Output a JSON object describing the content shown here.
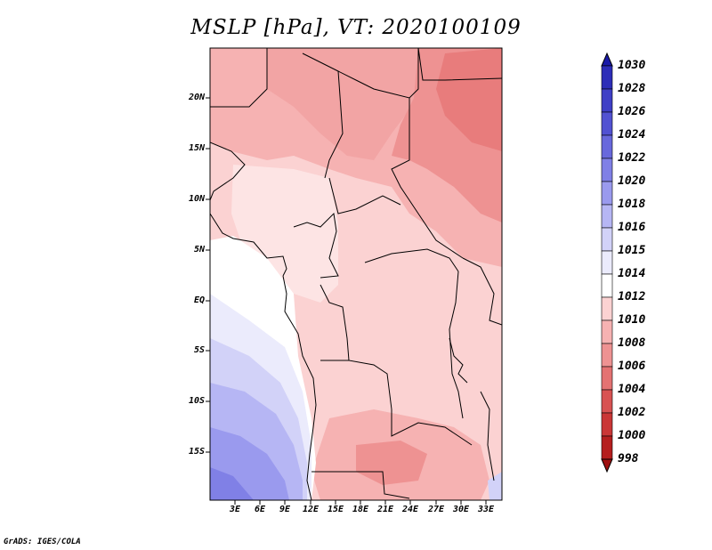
{
  "title": "MSLP [hPa], VT: 2020100109",
  "credit": "GrADS: IGES/COLA",
  "lat_labels": [
    "20N",
    "15N",
    "10N",
    "5N",
    "EQ",
    "5S",
    "10S",
    "15S"
  ],
  "lon_labels": [
    "3E",
    "6E",
    "9E",
    "12E",
    "15E",
    "18E",
    "21E",
    "24E",
    "27E",
    "30E",
    "33E"
  ],
  "colorbar": {
    "levels": [
      "1030",
      "1028",
      "1026",
      "1024",
      "1022",
      "1020",
      "1018",
      "1016",
      "1015",
      "1014",
      "1012",
      "1010",
      "1008",
      "1006",
      "1004",
      "1002",
      "1000",
      "998"
    ],
    "colors": [
      "#1a1aa8",
      "#2d2db8",
      "#3f3fc6",
      "#5252d2",
      "#6868dc",
      "#8080e6",
      "#9a9aee",
      "#b6b6f4",
      "#d2d2f8",
      "#ebebfc",
      "#ffffff",
      "#fbd2d2",
      "#f6b2b2",
      "#ee9292",
      "#e47272",
      "#d85252",
      "#ca3636",
      "#b51e1e",
      "#9e1010"
    ]
  }
}
